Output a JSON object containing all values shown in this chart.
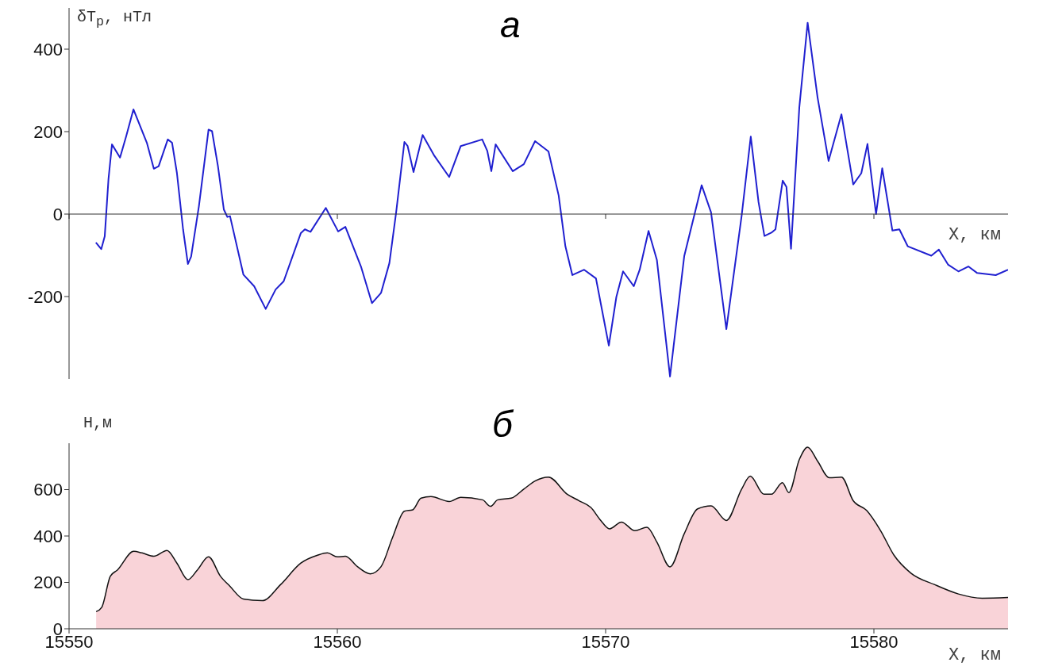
{
  "chart_data": [
    {
      "type": "line",
      "title": "а",
      "ylabel": "δT$_{р}$, нТл",
      "xlabel": "X, км",
      "color": "#2020d0",
      "xlim": [
        15550,
        15585
      ],
      "xticks": [
        15550,
        15560,
        15570,
        15580
      ],
      "ylim": [
        -400,
        500
      ],
      "yticks": [
        -200,
        0,
        200,
        400
      ],
      "tick_labels": "y",
      "x": [
        15551.0,
        15551.2,
        15551.33,
        15551.47,
        15551.6,
        15551.9,
        15552.13,
        15552.4,
        15552.9,
        15553.16,
        15553.34,
        15553.68,
        15553.84,
        15554.02,
        15554.25,
        15554.43,
        15554.55,
        15554.84,
        15555.2,
        15555.33,
        15555.55,
        15555.77,
        15555.9,
        15556.0,
        15556.5,
        15556.9,
        15557.33,
        15557.7,
        15558.0,
        15558.64,
        15558.79,
        15559.0,
        15559.57,
        15560.03,
        15560.3,
        15560.88,
        15561.29,
        15561.63,
        15561.94,
        15562.19,
        15562.5,
        15562.62,
        15562.84,
        15563.18,
        15563.62,
        15564.17,
        15564.6,
        15565.4,
        15565.59,
        15565.74,
        15565.9,
        15566.54,
        15566.95,
        15567.37,
        15567.87,
        15568.25,
        15568.5,
        15568.76,
        15569.2,
        15569.64,
        15570.12,
        15570.4,
        15570.65,
        15571.05,
        15571.27,
        15571.6,
        15571.91,
        15572.4,
        15572.93,
        15573.58,
        15573.93,
        15574.5,
        15575.07,
        15575.41,
        15575.7,
        15575.92,
        15576.18,
        15576.33,
        15576.6,
        15576.74,
        15576.91,
        15577.22,
        15577.53,
        15577.9,
        15578.31,
        15578.79,
        15579.23,
        15579.53,
        15579.76,
        15580.08,
        15580.31,
        15580.69,
        15580.95,
        15581.26,
        15582.14,
        15582.42,
        15582.77,
        15583.15,
        15583.52,
        15583.85,
        15584.54,
        15585.0
      ],
      "values": [
        -69,
        -85,
        -54,
        85,
        169,
        137,
        189,
        254,
        173,
        110,
        116,
        181,
        173,
        100,
        -37,
        -121,
        -103,
        19,
        205,
        201,
        116,
        11,
        -7,
        -5,
        -147,
        -175,
        -230,
        -183,
        -163,
        -46,
        -37,
        -43,
        15,
        -42,
        -31,
        -127,
        -216,
        -191,
        -119,
        3,
        175,
        165,
        102,
        192,
        141,
        90,
        165,
        181,
        153,
        104,
        169,
        104,
        121,
        177,
        152,
        45,
        -78,
        -148,
        -135,
        -156,
        -319,
        -201,
        -139,
        -175,
        -135,
        -41,
        -111,
        -394,
        -102,
        70,
        4,
        -279,
        -4,
        188,
        29,
        -53,
        -45,
        -37,
        81,
        66,
        -84,
        259,
        464,
        283,
        129,
        242,
        72,
        99,
        170,
        0,
        111,
        -40,
        -37,
        -78,
        -101,
        -86,
        -123,
        -139,
        -127,
        -143,
        -148,
        -135
      ]
    },
    {
      "type": "area",
      "title": "б",
      "ylabel": "Н,м",
      "xlabel": "X, км",
      "color": "#f9d3d8",
      "xlim": [
        15550,
        15585
      ],
      "xticks": [
        15550,
        15560,
        15570,
        15580
      ],
      "ylim": [
        0,
        800
      ],
      "yticks": [
        0,
        200,
        400,
        600
      ],
      "x": [
        15551.01,
        15551.22,
        15551.54,
        15551.8,
        15552.41,
        15552.72,
        15553.16,
        15553.65,
        15554.02,
        15554.43,
        15554.78,
        15555.2,
        15555.64,
        15556.0,
        15556.5,
        15557.2,
        15557.89,
        15558.64,
        15559.26,
        15559.63,
        15560.0,
        15560.3,
        15560.75,
        15561.23,
        15561.63,
        15562.06,
        15562.5,
        15562.81,
        15563.12,
        15563.49,
        15564.17,
        15564.6,
        15565.41,
        15565.71,
        15565.98,
        15566.48,
        15566.95,
        15567.37,
        15567.87,
        15568.57,
        15569.01,
        15569.45,
        15569.82,
        15570.15,
        15570.59,
        15571.09,
        15571.54,
        15571.91,
        15572.4,
        15572.93,
        15573.43,
        15573.93,
        15574.5,
        15575.07,
        15575.39,
        15575.9,
        15576.18,
        15576.59,
        15576.83,
        15577.22,
        15577.53,
        15577.9,
        15578.34,
        15578.79,
        15579.23,
        15579.73,
        15580.25,
        15580.75,
        15581.38,
        15582.27,
        15583.15,
        15584.04,
        15585.0
      ],
      "values": [
        74,
        93,
        227,
        253,
        334,
        327,
        313,
        338,
        283,
        212,
        253,
        310,
        227,
        183,
        128,
        121,
        191,
        283,
        317,
        327,
        310,
        313,
        268,
        237,
        268,
        394,
        507,
        513,
        563,
        570,
        549,
        567,
        556,
        528,
        556,
        563,
        602,
        637,
        654,
        580,
        552,
        523,
        467,
        431,
        460,
        423,
        438,
        374,
        267,
        410,
        517,
        530,
        467,
        602,
        658,
        580,
        580,
        630,
        587,
        730,
        783,
        723,
        651,
        654,
        552,
        510,
        423,
        317,
        240,
        190,
        150,
        132,
        135
      ]
    }
  ]
}
